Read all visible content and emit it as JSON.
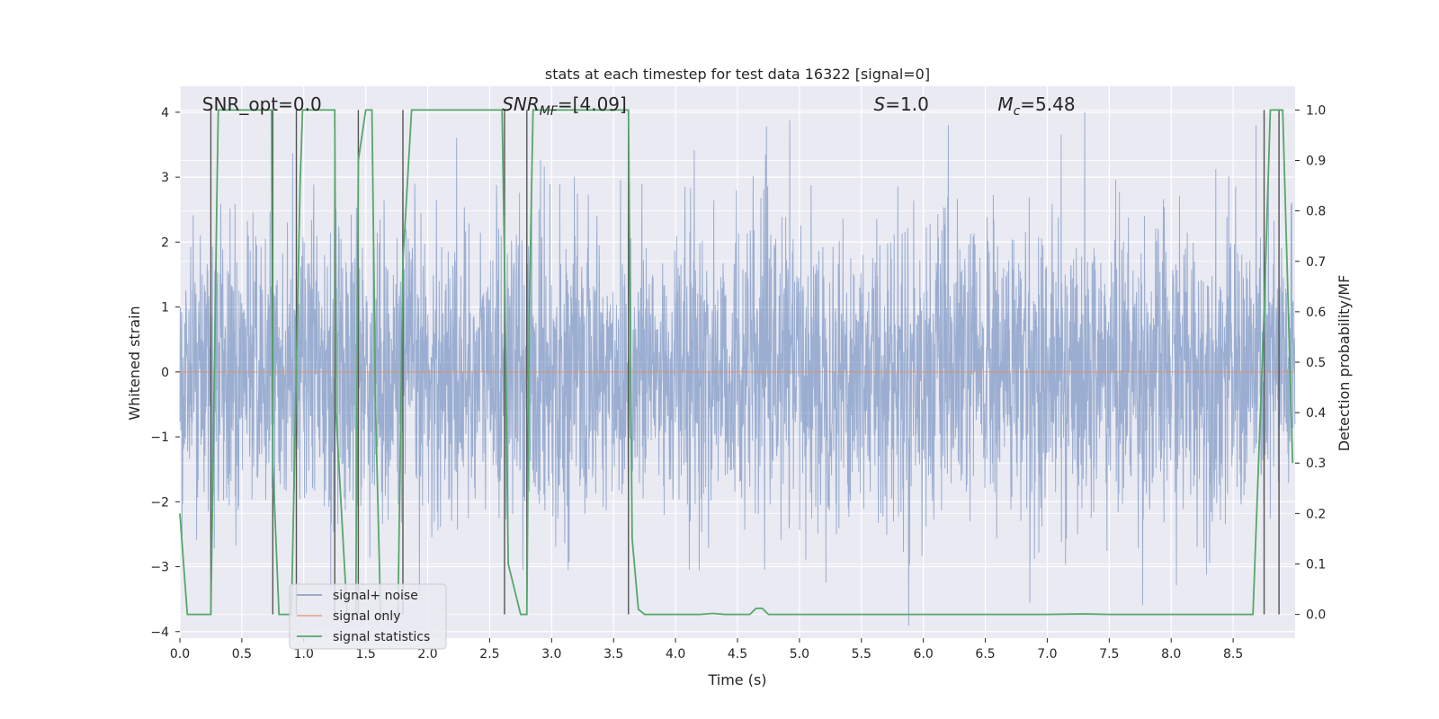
{
  "chart_data": {
    "type": "line",
    "title": "stats at each timestep for test data 16322 [signal=0]",
    "xlabel": "Time (s)",
    "ylabel_left": "Whitened strain",
    "ylabel_right": "Detection probability/MF",
    "xlim": [
      0.0,
      9.0
    ],
    "ylim_left": [
      -4.1,
      4.4
    ],
    "ylim_right": [
      -0.047,
      1.047
    ],
    "x_ticks": [
      "0.0",
      "0.5",
      "1.0",
      "1.5",
      "2.0",
      "2.5",
      "3.0",
      "3.5",
      "4.0",
      "4.5",
      "5.0",
      "5.5",
      "6.0",
      "6.5",
      "7.0",
      "7.5",
      "8.0",
      "8.5"
    ],
    "x_tick_values": [
      0.0,
      0.5,
      1.0,
      1.5,
      2.0,
      2.5,
      3.0,
      3.5,
      4.0,
      4.5,
      5.0,
      5.5,
      6.0,
      6.5,
      7.0,
      7.5,
      8.0,
      8.5
    ],
    "y_left_ticks": [
      "−4",
      "−3",
      "−2",
      "−1",
      "0",
      "1",
      "2",
      "3",
      "4"
    ],
    "y_left_tick_values": [
      -4,
      -3,
      -2,
      -1,
      0,
      1,
      2,
      3,
      4
    ],
    "y_right_ticks": [
      "0.0",
      "0.1",
      "0.2",
      "0.3",
      "0.4",
      "0.5",
      "0.6",
      "0.7",
      "0.8",
      "0.9",
      "1.0"
    ],
    "y_right_tick_values": [
      0.0,
      0.1,
      0.2,
      0.3,
      0.4,
      0.5,
      0.6,
      0.7,
      0.8,
      0.9,
      1.0
    ],
    "annotations": [
      {
        "id": "snr-opt",
        "x": 0.18,
        "text": "SNR_opt=0.0",
        "italic": false
      },
      {
        "id": "snr-mf",
        "x": 2.6,
        "text": "SNR_MF=[4.09]",
        "italic": true
      },
      {
        "id": "s-stat",
        "x": 5.6,
        "text": "S=1.0",
        "italic": true
      },
      {
        "id": "mc",
        "x": 6.6,
        "text": "M_c=5.48",
        "italic": true
      }
    ],
    "noise": {
      "name": "signal+ noise",
      "color": "#4c72b0",
      "samples": 3600,
      "amplitude_band": [
        -4,
        4
      ]
    },
    "signal_only": {
      "name": "signal only",
      "color": "#dd8452",
      "value": 0.0
    },
    "series": [
      {
        "name": "signal statistics",
        "axis": "right",
        "color": "#55a868",
        "x": [
          0.0,
          0.06,
          0.25,
          0.3,
          0.31,
          0.5,
          0.74,
          0.75,
          0.8,
          0.9,
          0.97,
          0.99,
          1.25,
          1.26,
          1.35,
          1.42,
          1.44,
          1.5,
          1.55,
          1.58,
          1.62,
          1.76,
          1.8,
          1.87,
          2.0,
          2.5,
          2.6,
          2.62,
          2.65,
          2.75,
          2.8,
          2.82,
          2.85,
          2.88,
          3.0,
          3.5,
          3.62,
          3.65,
          3.7,
          3.75,
          3.85,
          3.95,
          4.0,
          4.1,
          4.2,
          4.3,
          4.4,
          4.5,
          4.6,
          4.65,
          4.7,
          4.75,
          4.8,
          5.0,
          5.5,
          6.0,
          6.5,
          7.0,
          7.3,
          7.5,
          8.0,
          8.5,
          8.66,
          8.75,
          8.8,
          8.87,
          8.9,
          8.98
        ],
        "y": [
          0.2,
          0.0,
          0.0,
          0.85,
          1.0,
          1.0,
          1.0,
          0.3,
          0.0,
          0.0,
          0.85,
          1.0,
          1.0,
          0.4,
          0.0,
          0.0,
          0.9,
          1.0,
          1.0,
          0.4,
          0.0,
          0.0,
          0.7,
          1.0,
          1.0,
          1.0,
          1.0,
          0.7,
          0.1,
          0.0,
          0.0,
          0.6,
          1.0,
          1.0,
          1.0,
          1.0,
          1.0,
          0.15,
          0.01,
          0.0,
          0.0,
          0.0,
          0.0,
          0.0,
          0.0,
          0.002,
          0.0,
          0.0,
          0.0,
          0.012,
          0.012,
          0.0,
          0.0,
          0.0,
          0.0,
          0.0,
          0.0,
          0.0,
          0.001,
          0.0,
          0.0,
          0.0,
          0.0,
          0.6,
          1.0,
          1.0,
          1.0,
          0.3
        ]
      }
    ],
    "vertical_lines": [
      0.25,
      0.75,
      0.94,
      1.25,
      1.44,
      1.8,
      2.62,
      2.8,
      3.62,
      8.75,
      8.87
    ],
    "legend": {
      "position": "lower-left",
      "entries": [
        "signal+ noise",
        "signal only",
        "signal statistics"
      ]
    },
    "colors": {
      "background": "#eaeaf2",
      "grid": "#ffffff",
      "text": "#262626",
      "vline": "#555555"
    }
  }
}
